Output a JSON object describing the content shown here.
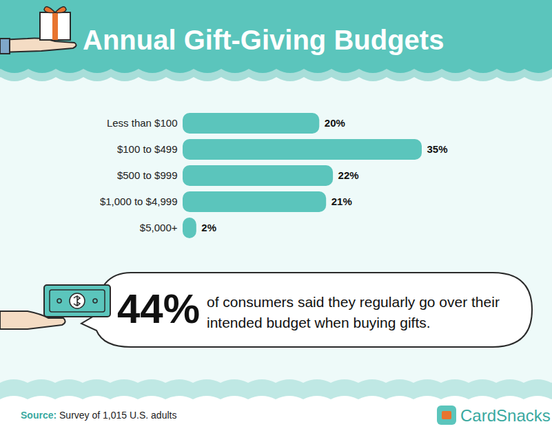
{
  "chart_data": {
    "type": "bar",
    "title": "Annual Gift-Giving Budgets",
    "categories": [
      "Less than $100",
      "$100 to $499",
      "$500 to $999",
      "$1,000 to $4,999",
      "$5,000+"
    ],
    "values": [
      20,
      35,
      22,
      21,
      2
    ],
    "value_labels": [
      "20%",
      "35%",
      "22%",
      "21%",
      "2%"
    ],
    "color": "#5bc5bc",
    "xlim": [
      0,
      35
    ],
    "orientation": "horizontal",
    "data_labels": true,
    "tick_labels": "y"
  },
  "callout": {
    "number": "44%",
    "text": "of consumers said they regularly go over their intended budget when buying gifts."
  },
  "source": {
    "label": "Source:",
    "text": "Survey of 1,015 U.S. adults"
  },
  "brand": "CardSnacks"
}
